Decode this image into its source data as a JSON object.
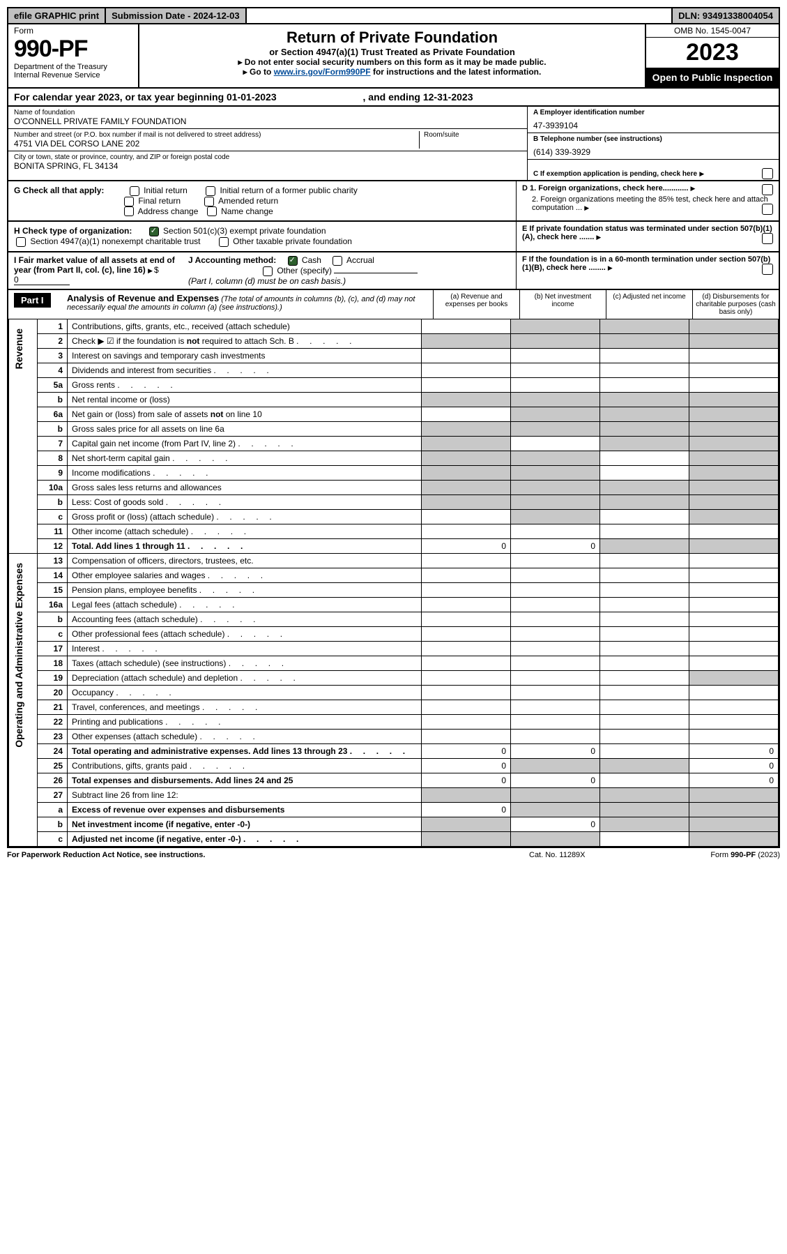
{
  "top_bar": {
    "efile": "efile GRAPHIC print",
    "submission": "Submission Date - 2024-12-03",
    "dln": "DLN: 93491338004054"
  },
  "header": {
    "form_label": "Form",
    "form_number": "990-PF",
    "dept1": "Department of the Treasury",
    "dept2": "Internal Revenue Service",
    "title": "Return of Private Foundation",
    "subtitle": "or Section 4947(a)(1) Trust Treated as Private Foundation",
    "note1": "▸ Do not enter social security numbers on this form as it may be made public.",
    "note2_pre": "▸ Go to ",
    "note2_link": "www.irs.gov/Form990PF",
    "note2_post": " for instructions and the latest information.",
    "omb": "OMB No. 1545-0047",
    "year": "2023",
    "open": "Open to Public Inspection"
  },
  "cal_year": {
    "text": "For calendar year 2023, or tax year beginning 01-01-2023",
    "ending": ", and ending 12-31-2023"
  },
  "identity": {
    "name_label": "Name of foundation",
    "name": "O'CONNELL PRIVATE FAMILY FOUNDATION",
    "addr_label": "Number and street (or P.O. box number if mail is not delivered to street address)",
    "addr": "4751 VIA DEL CORSO LANE 202",
    "room_label": "Room/suite",
    "city_label": "City or town, state or province, country, and ZIP or foreign postal code",
    "city": "BONITA SPRING, FL  34134",
    "ein_label": "A Employer identification number",
    "ein": "47-3939104",
    "phone_label": "B Telephone number (see instructions)",
    "phone": "(614) 339-3929",
    "c_label": "C  If exemption application is pending, check here"
  },
  "checks": {
    "g_label": "G Check all that apply:",
    "g_opts": [
      "Initial return",
      "Initial return of a former public charity",
      "Final return",
      "Amended return",
      "Address change",
      "Name change"
    ],
    "h_label": "H Check type of organization:",
    "h_opts": [
      "Section 501(c)(3) exempt private foundation",
      "Section 4947(a)(1) nonexempt charitable trust",
      "Other taxable private foundation"
    ],
    "d1": "D 1. Foreign organizations, check here............",
    "d2": "2. Foreign organizations meeting the 85% test, check here and attach computation ...",
    "e": "E  If private foundation status was terminated under section 507(b)(1)(A), check here .......",
    "i_label": "I Fair market value of all assets at end of year (from Part II, col. (c), line 16)",
    "i_val": "0",
    "j_label": "J Accounting method:",
    "j_cash": "Cash",
    "j_accrual": "Accrual",
    "j_other": "Other (specify)",
    "j_note": "(Part I, column (d) must be on cash basis.)",
    "f": "F  If the foundation is in a 60-month termination under section 507(b)(1)(B), check here ........"
  },
  "part1": {
    "label": "Part I",
    "title": "Analysis of Revenue and Expenses",
    "title_note": " (The total of amounts in columns (b), (c), and (d) may not necessarily equal the amounts in column (a) (see instructions).)",
    "col_a": "(a)   Revenue and expenses per books",
    "col_b": "(b)   Net investment income",
    "col_c": "(c)   Adjusted net income",
    "col_d": "(d)  Disbursements for charitable purposes (cash basis only)"
  },
  "sections": {
    "revenue": "Revenue",
    "opex": "Operating and Administrative Expenses"
  },
  "lines": [
    {
      "n": "1",
      "d": "Contributions, gifts, grants, etc., received (attach schedule)"
    },
    {
      "n": "2",
      "d": "Check ▶ ☑ if the foundation is not required to attach Sch. B",
      "dots": true
    },
    {
      "n": "3",
      "d": "Interest on savings and temporary cash investments"
    },
    {
      "n": "4",
      "d": "Dividends and interest from securities",
      "dots": true
    },
    {
      "n": "5a",
      "d": "Gross rents",
      "dots": true
    },
    {
      "n": "b",
      "d": "Net rental income or (loss)"
    },
    {
      "n": "6a",
      "d": "Net gain or (loss) from sale of assets not on line 10"
    },
    {
      "n": "b",
      "d": "Gross sales price for all assets on line 6a"
    },
    {
      "n": "7",
      "d": "Capital gain net income (from Part IV, line 2)",
      "dots": true
    },
    {
      "n": "8",
      "d": "Net short-term capital gain",
      "dots": true
    },
    {
      "n": "9",
      "d": "Income modifications",
      "dots": true
    },
    {
      "n": "10a",
      "d": "Gross sales less returns and allowances"
    },
    {
      "n": "b",
      "d": "Less: Cost of goods sold",
      "dots": true
    },
    {
      "n": "c",
      "d": "Gross profit or (loss) (attach schedule)",
      "dots": true
    },
    {
      "n": "11",
      "d": "Other income (attach schedule)",
      "dots": true
    },
    {
      "n": "12",
      "d": "Total. Add lines 1 through 11",
      "dots": true,
      "bold": true,
      "a": "0",
      "b": "0"
    },
    {
      "n": "13",
      "d": "Compensation of officers, directors, trustees, etc."
    },
    {
      "n": "14",
      "d": "Other employee salaries and wages",
      "dots": true
    },
    {
      "n": "15",
      "d": "Pension plans, employee benefits",
      "dots": true
    },
    {
      "n": "16a",
      "d": "Legal fees (attach schedule)",
      "dots": true
    },
    {
      "n": "b",
      "d": "Accounting fees (attach schedule)",
      "dots": true
    },
    {
      "n": "c",
      "d": "Other professional fees (attach schedule)",
      "dots": true
    },
    {
      "n": "17",
      "d": "Interest",
      "dots": true
    },
    {
      "n": "18",
      "d": "Taxes (attach schedule) (see instructions)",
      "dots": true
    },
    {
      "n": "19",
      "d": "Depreciation (attach schedule) and depletion",
      "dots": true
    },
    {
      "n": "20",
      "d": "Occupancy",
      "dots": true
    },
    {
      "n": "21",
      "d": "Travel, conferences, and meetings",
      "dots": true
    },
    {
      "n": "22",
      "d": "Printing and publications",
      "dots": true
    },
    {
      "n": "23",
      "d": "Other expenses (attach schedule)",
      "dots": true
    },
    {
      "n": "24",
      "d": "Total operating and administrative expenses. Add lines 13 through 23",
      "dots": true,
      "bold": true,
      "a": "0",
      "b": "0",
      "dcol": "0"
    },
    {
      "n": "25",
      "d": "Contributions, gifts, grants paid",
      "dots": true,
      "a": "0",
      "dcol": "0"
    },
    {
      "n": "26",
      "d": "Total expenses and disbursements. Add lines 24 and 25",
      "bold": true,
      "a": "0",
      "b": "0",
      "dcol": "0"
    },
    {
      "n": "27",
      "d": "Subtract line 26 from line 12:"
    },
    {
      "n": "a",
      "d": "Excess of revenue over expenses and disbursements",
      "bold": true,
      "a": "0"
    },
    {
      "n": "b",
      "d": "Net investment income (if negative, enter -0-)",
      "bold": true,
      "b": "0"
    },
    {
      "n": "c",
      "d": "Adjusted net income (if negative, enter -0-)",
      "bold": true,
      "dots": true
    }
  ],
  "shading": {
    "1": {
      "b": true,
      "c": true,
      "d": true
    },
    "2": {
      "a": true,
      "b": true,
      "c": true,
      "d": true
    },
    "5b": {
      "a": true,
      "b": true,
      "c": true,
      "d": true
    },
    "6a": {
      "b": true,
      "c": true,
      "d": true
    },
    "6b": {
      "a": true,
      "b": true,
      "c": true,
      "d": true
    },
    "7": {
      "a": true,
      "c": true,
      "d": true
    },
    "8": {
      "a": true,
      "b": true,
      "d": true
    },
    "9": {
      "a": true,
      "b": true,
      "d": true
    },
    "10a": {
      "a": true,
      "b": true,
      "c": true,
      "d": true
    },
    "10b": {
      "a": true,
      "b": true,
      "c": true,
      "d": true
    },
    "10c": {
      "b": true,
      "d": true
    },
    "12": {
      "c": true,
      "d": true
    },
    "19": {
      "d": true
    },
    "25": {
      "b": true,
      "c": true
    },
    "27": {
      "a": true,
      "b": true,
      "c": true,
      "d": true
    },
    "27a": {
      "b": true,
      "c": true,
      "d": true
    },
    "27b": {
      "a": true,
      "c": true,
      "d": true
    },
    "27c": {
      "a": true,
      "b": true,
      "d": true
    }
  },
  "footer": {
    "left": "For Paperwork Reduction Act Notice, see instructions.",
    "mid": "Cat. No. 11289X",
    "right": "Form 990-PF (2023)"
  },
  "colors": {
    "header_bg": "#c0c0c0",
    "black": "#000000",
    "shade": "#c8c8c8",
    "link": "#004b99",
    "check_green": "#2d5f2d"
  }
}
